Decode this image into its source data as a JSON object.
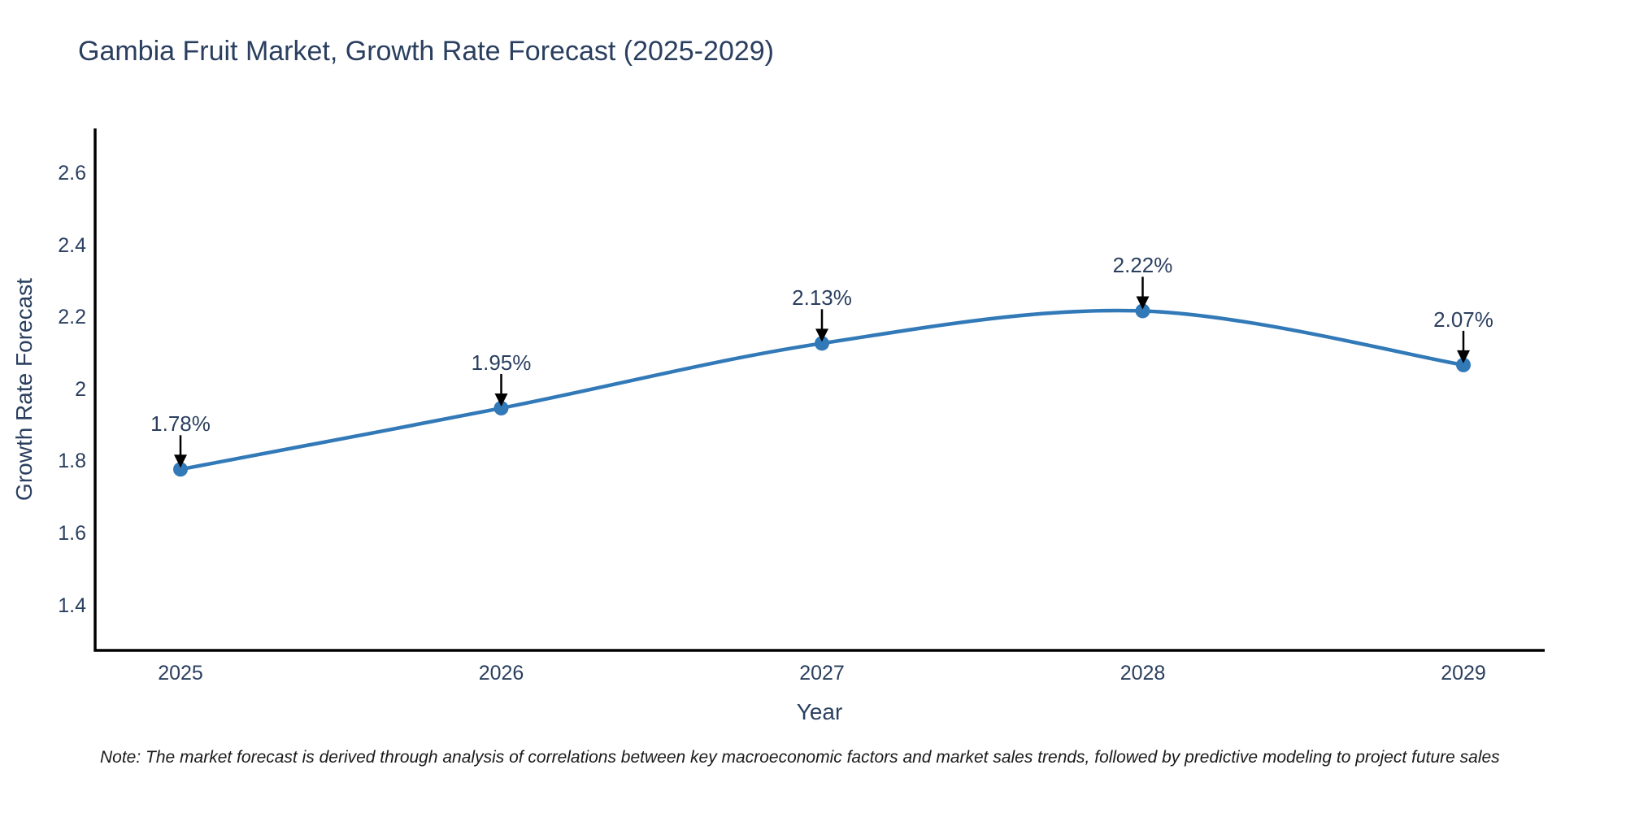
{
  "chart_data": {
    "type": "line",
    "title": "Gambia Fruit Market, Growth Rate Forecast (2025-2029)",
    "xlabel": "Year",
    "ylabel": "Growth Rate Forecast",
    "categories": [
      "2025",
      "2026",
      "2027",
      "2028",
      "2029"
    ],
    "x": [
      2025,
      2026,
      2027,
      2028,
      2029
    ],
    "values": [
      1.78,
      1.95,
      2.13,
      2.22,
      2.07
    ],
    "point_labels": [
      "1.78%",
      "1.95%",
      "2.13%",
      "2.22%",
      "2.07%"
    ],
    "ytick_labels": [
      "1.4",
      "1.6",
      "1.8",
      "2",
      "2.2",
      "2.4",
      "2.6"
    ],
    "yticks": [
      1.4,
      1.6,
      1.8,
      2.0,
      2.2,
      2.4,
      2.6
    ],
    "ylim": [
      1.277,
      2.727
    ],
    "grid": false,
    "legend_position": "none",
    "line_shape": "spline",
    "line_color": "#3279b8",
    "marker_color": "#3279b8",
    "axis_color": "#000000",
    "arrow_color": "#000000",
    "text_color": "#2a3f5f"
  },
  "note": "Note: The market forecast is derived through analysis of correlations between key macroeconomic factors and market sales trends, followed by predictive modeling to project future sales"
}
